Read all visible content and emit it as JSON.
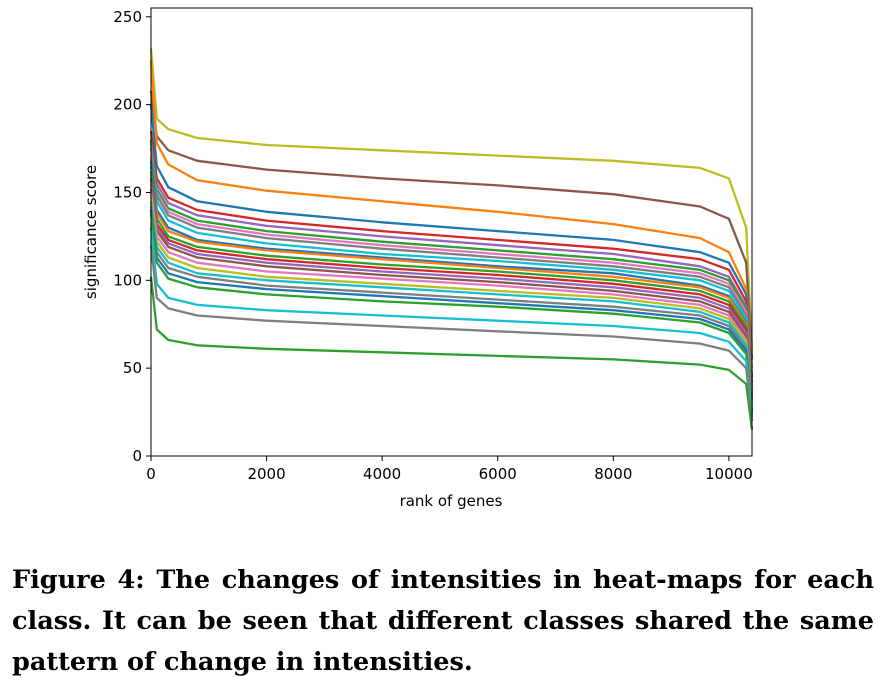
{
  "chart_data": {
    "type": "line",
    "xlabel": "rank of genes",
    "ylabel": "significance score",
    "xlim": [
      0,
      10400
    ],
    "ylim": [
      0,
      255
    ],
    "x_ticks": [
      0,
      2000,
      4000,
      6000,
      8000,
      10000
    ],
    "y_ticks": [
      0,
      50,
      100,
      150,
      200,
      250
    ],
    "x_tick_labels": [
      "0",
      "2000",
      "4000",
      "6000",
      "8000",
      "10000"
    ],
    "y_tick_labels": [
      "0",
      "50",
      "100",
      "150",
      "200",
      "250"
    ],
    "grid": false,
    "legend": "none",
    "sample_x": [
      0,
      100,
      300,
      800,
      2000,
      4000,
      6000,
      8000,
      9500,
      10000,
      10300,
      10400
    ],
    "series": [
      {
        "color": "#bcbd22",
        "values": [
          232,
          192,
          186,
          181,
          177,
          174,
          171,
          168,
          164,
          158,
          130,
          60
        ]
      },
      {
        "color": "#8c564b",
        "values": [
          208,
          182,
          174,
          168,
          163,
          158,
          154,
          149,
          142,
          135,
          110,
          55
        ]
      },
      {
        "color": "#ff7f0e",
        "values": [
          225,
          178,
          166,
          157,
          151,
          145,
          139,
          132,
          124,
          116,
          95,
          50
        ]
      },
      {
        "color": "#1f77b4",
        "values": [
          200,
          165,
          153,
          145,
          139,
          133,
          128,
          123,
          116,
          110,
          92,
          45
        ]
      },
      {
        "color": "#d62728",
        "values": [
          185,
          158,
          147,
          140,
          134,
          128,
          123,
          118,
          112,
          106,
          88,
          42
        ]
      },
      {
        "color": "#9467bd",
        "values": [
          175,
          155,
          144,
          137,
          131,
          125,
          120,
          115,
          108,
          102,
          85,
          40
        ]
      },
      {
        "color": "#2ca02c",
        "values": [
          180,
          152,
          141,
          134,
          128,
          122,
          117,
          112,
          106,
          100,
          84,
          40
        ]
      },
      {
        "color": "#e377c2",
        "values": [
          170,
          150,
          139,
          132,
          126,
          120,
          115,
          110,
          104,
          98,
          82,
          38
        ]
      },
      {
        "color": "#7f7f7f",
        "values": [
          178,
          148,
          137,
          130,
          124,
          118,
          113,
          108,
          102,
          96,
          80,
          38
        ]
      },
      {
        "color": "#17becf",
        "values": [
          165,
          145,
          134,
          127,
          121,
          115,
          111,
          106,
          100,
          94,
          78,
          36
        ]
      },
      {
        "color": "#1f77b4",
        "values": [
          168,
          140,
          130,
          123,
          118,
          113,
          108,
          104,
          97,
          91,
          76,
          35
        ]
      },
      {
        "color": "#ff7f0e",
        "values": [
          160,
          138,
          128,
          122,
          117,
          112,
          107,
          102,
          96,
          90,
          75,
          34
        ]
      },
      {
        "color": "#2ca02c",
        "values": [
          162,
          135,
          125,
          119,
          114,
          109,
          105,
          100,
          94,
          88,
          74,
          33
        ]
      },
      {
        "color": "#d62728",
        "values": [
          158,
          132,
          123,
          117,
          112,
          107,
          103,
          98,
          92,
          86,
          72,
          32
        ]
      },
      {
        "color": "#9467bd",
        "values": [
          155,
          130,
          121,
          115,
          110,
          105,
          101,
          96,
          90,
          84,
          70,
          31
        ]
      },
      {
        "color": "#8c564b",
        "values": [
          152,
          128,
          119,
          113,
          108,
          103,
          99,
          94,
          88,
          82,
          68,
          30
        ]
      },
      {
        "color": "#e377c2",
        "values": [
          150,
          125,
          116,
          110,
          105,
          101,
          97,
          92,
          86,
          80,
          66,
          29
        ]
      },
      {
        "color": "#bcbd22",
        "values": [
          148,
          122,
          113,
          107,
          102,
          98,
          94,
          90,
          84,
          78,
          65,
          28
        ]
      },
      {
        "color": "#17becf",
        "values": [
          145,
          119,
          110,
          104,
          100,
          96,
          92,
          88,
          82,
          76,
          63,
          27
        ]
      },
      {
        "color": "#7f7f7f",
        "values": [
          142,
          116,
          107,
          102,
          97,
          93,
          89,
          85,
          80,
          74,
          61,
          26
        ]
      },
      {
        "color": "#1f77b4",
        "values": [
          140,
          113,
          104,
          99,
          95,
          91,
          87,
          83,
          78,
          72,
          60,
          25
        ]
      },
      {
        "color": "#2ca02c",
        "values": [
          138,
          110,
          101,
          96,
          92,
          88,
          85,
          81,
          76,
          70,
          58,
          24
        ]
      },
      {
        "color": "#17becf",
        "values": [
          130,
          98,
          90,
          86,
          83,
          80,
          77,
          74,
          70,
          65,
          54,
          22
        ]
      },
      {
        "color": "#7f7f7f",
        "values": [
          120,
          90,
          84,
          80,
          77,
          74,
          71,
          68,
          64,
          60,
          50,
          20
        ]
      },
      {
        "color": "#2ca02c",
        "values": [
          102,
          72,
          66,
          63,
          61,
          59,
          57,
          55,
          52,
          49,
          41,
          15
        ]
      }
    ]
  },
  "caption": "Figure 4: The changes of intensities in heat-maps for each class. It can be seen that different classes shared the same pattern of change in intensities."
}
